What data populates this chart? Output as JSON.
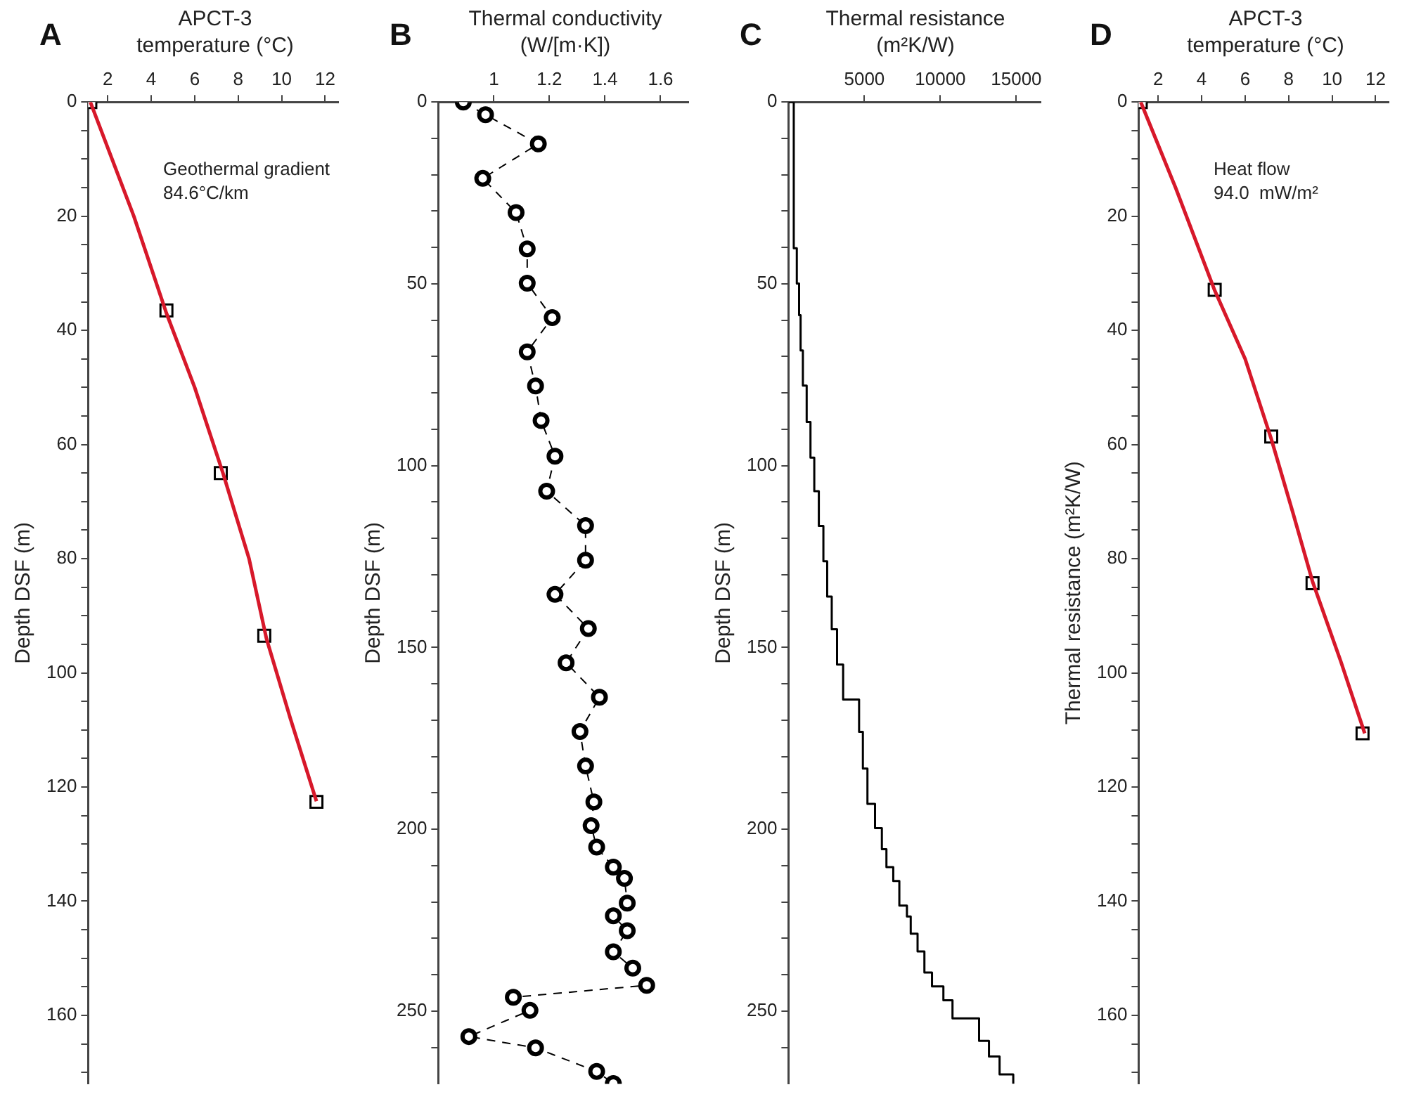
{
  "chart_data": [
    {
      "type": "scatter",
      "title": "A",
      "xlabel": "APCT-3\ntemperature (°C)",
      "ylabel": "Depth DSF (m)",
      "xlim": [
        1.1,
        12.6
      ],
      "xticks": [
        2,
        4,
        6,
        8,
        10,
        12
      ],
      "ylim": [
        172,
        0
      ],
      "yticks": [
        0,
        {
          "value": 5,
          "label": null
        },
        {
          "value": 10,
          "label": null
        },
        {
          "value": 15,
          "label": null
        },
        20,
        {
          "value": 25,
          "label": null
        },
        {
          "value": 30,
          "label": null
        },
        {
          "value": 35,
          "label": null
        },
        40,
        {
          "value": 45,
          "label": null
        },
        {
          "value": 50,
          "label": null
        },
        {
          "value": 55,
          "label": null
        },
        60,
        {
          "value": 65,
          "label": null
        },
        {
          "value": 70,
          "label": null
        },
        {
          "value": 75,
          "label": null
        },
        80,
        {
          "value": 85,
          "label": null
        },
        {
          "value": 90,
          "label": null
        },
        {
          "value": 95,
          "label": null
        },
        100,
        {
          "value": 105,
          "label": null
        },
        {
          "value": 110,
          "label": null
        },
        {
          "value": 115,
          "label": null
        },
        120,
        {
          "value": 125,
          "label": null
        },
        {
          "value": 130,
          "label": null
        },
        {
          "value": 135,
          "label": null
        },
        140,
        {
          "value": 145,
          "label": null
        },
        {
          "value": 150,
          "label": null
        },
        {
          "value": 155,
          "label": null
        },
        160,
        {
          "value": 165,
          "label": null
        },
        {
          "value": 170,
          "label": null
        }
      ],
      "annotations": [
        "Geothermal gradient\n84.6°C/km"
      ],
      "series": [
        {
          "type": "line",
          "color": "#d7182a",
          "marker": "none",
          "x": [
            1.2,
            3.2,
            4.7,
            6.0,
            7.3,
            8.5,
            9.3,
            10.4,
            11.6
          ],
          "values": [
            0,
            20,
            37,
            50,
            65,
            80,
            94,
            108,
            122.5
          ]
        },
        {
          "color": "#000000",
          "marker": "square",
          "x": [
            1.2,
            4.7,
            7.2,
            9.2,
            11.6
          ],
          "values": [
            0,
            36.5,
            65,
            93.5,
            122.6
          ]
        }
      ]
    },
    {
      "type": "line",
      "title": "B",
      "xlabel": "Thermal conductivity\n(W/[m·K])",
      "ylabel": "Depth DSF (m)",
      "xlim": [
        0.8,
        1.7
      ],
      "xticks": [
        1,
        1.2,
        1.4,
        1.6
      ],
      "ylim": [
        270,
        0
      ],
      "yticks": [
        0,
        {
          "value": 10,
          "label": null
        },
        {
          "value": 20,
          "label": null
        },
        {
          "value": 30,
          "label": null
        },
        {
          "value": 40,
          "label": null
        },
        50,
        {
          "value": 60,
          "label": null
        },
        {
          "value": 70,
          "label": null
        },
        {
          "value": 80,
          "label": null
        },
        {
          "value": 90,
          "label": null
        },
        100,
        {
          "value": 110,
          "label": null
        },
        {
          "value": 120,
          "label": null
        },
        {
          "value": 130,
          "label": null
        },
        {
          "value": 140,
          "label": null
        },
        150,
        {
          "value": 160,
          "label": null
        },
        {
          "value": 170,
          "label": null
        },
        {
          "value": 180,
          "label": null
        },
        {
          "value": 190,
          "label": null
        },
        200,
        {
          "value": 210,
          "label": null
        },
        {
          "value": 220,
          "label": null
        },
        {
          "value": 230,
          "label": null
        },
        {
          "value": 240,
          "label": null
        },
        250,
        {
          "value": 260,
          "label": null
        }
      ],
      "marker": "circle",
      "line_style": "dashed",
      "series": [
        {
          "color": "#000000",
          "x": [
            0.89,
            0.97,
            1.16,
            0.96,
            1.08,
            1.12,
            1.12,
            1.21,
            1.12,
            1.15,
            1.17,
            1.22,
            1.19,
            1.33,
            1.33,
            1.22,
            1.34,
            1.26,
            1.38,
            1.31,
            1.33,
            1.36,
            1.35,
            1.37,
            1.43,
            1.47,
            1.48,
            1.43,
            1.48,
            1.43,
            1.5,
            1.55,
            1.07,
            1.13,
            0.91,
            1.15,
            1.37,
            1.43
          ],
          "values": [
            0,
            3.5,
            11.5,
            21,
            30.4,
            40.4,
            49.8,
            59.3,
            68.7,
            78.1,
            87.6,
            97.4,
            107,
            116.5,
            126,
            135.4,
            144.8,
            154.2,
            163.7,
            173.1,
            182.6,
            192.5,
            199,
            204.9,
            210.4,
            213.5,
            220.3,
            223.8,
            227.9,
            233.7,
            238.2,
            242.9,
            246.2,
            249.8,
            257,
            260.1,
            266.6,
            269.9
          ]
        }
      ]
    },
    {
      "type": "step",
      "title": "C",
      "xlabel": "Thermal resistance\n(m²K/W)",
      "ylabel": "Depth DSF (m)",
      "xlim": [
        0,
        16600
      ],
      "xticks": [
        5000,
        10000,
        15000
      ],
      "ylim": [
        270,
        0
      ],
      "yticks": [
        0,
        {
          "value": 10,
          "label": null
        },
        {
          "value": 20,
          "label": null
        },
        {
          "value": 30,
          "label": null
        },
        {
          "value": 40,
          "label": null
        },
        50,
        {
          "value": 60,
          "label": null
        },
        {
          "value": 70,
          "label": null
        },
        {
          "value": 80,
          "label": null
        },
        {
          "value": 90,
          "label": null
        },
        100,
        {
          "value": 110,
          "label": null
        },
        {
          "value": 120,
          "label": null
        },
        {
          "value": 130,
          "label": null
        },
        {
          "value": 140,
          "label": null
        },
        150,
        {
          "value": 160,
          "label": null
        },
        {
          "value": 170,
          "label": null
        },
        {
          "value": 180,
          "label": null
        },
        {
          "value": 190,
          "label": null
        },
        200,
        {
          "value": 210,
          "label": null
        },
        {
          "value": 220,
          "label": null
        },
        {
          "value": 230,
          "label": null
        },
        {
          "value": 240,
          "label": null
        },
        250,
        {
          "value": 260,
          "label": null
        }
      ],
      "series": [
        {
          "color": "#000000",
          "x": [
            0,
            350,
            550,
            700,
            800,
            950,
            1200,
            1450,
            1700,
            2000,
            2300,
            2550,
            2850,
            3200,
            3600,
            4650,
            4900,
            5200,
            5700,
            6150,
            6450,
            6900,
            7300,
            7800,
            8050,
            8500,
            8950,
            9450,
            10200,
            10800,
            12550,
            13200,
            13900,
            14800
          ],
          "values": [
            0,
            40.2,
            49.9,
            58.6,
            68.3,
            78,
            88,
            97.8,
            107,
            116.6,
            126.3,
            136,
            145,
            154.7,
            164.3,
            173.2,
            183.3,
            193,
            199.7,
            205.5,
            210.4,
            214.2,
            221,
            224,
            228.7,
            233.6,
            239.4,
            243.2,
            247,
            252,
            258.2,
            262.5,
            267.4,
            270
          ]
        }
      ]
    },
    {
      "type": "scatter",
      "title": "D",
      "xlabel": "APCT-3\ntemperature (°C)",
      "ylabel": "Thermal resistance (m²K/W)",
      "xlim": [
        1.1,
        12.6
      ],
      "xticks": [
        2,
        4,
        6,
        8,
        10,
        12
      ],
      "ylim": [
        172,
        0
      ],
      "yticks": [
        0,
        {
          "value": 5,
          "label": null
        },
        {
          "value": 10,
          "label": null
        },
        {
          "value": 15,
          "label": null
        },
        20,
        {
          "value": 25,
          "label": null
        },
        {
          "value": 30,
          "label": null
        },
        {
          "value": 35,
          "label": null
        },
        40,
        {
          "value": 45,
          "label": null
        },
        {
          "value": 50,
          "label": null
        },
        {
          "value": 55,
          "label": null
        },
        60,
        {
          "value": 65,
          "label": null
        },
        {
          "value": 70,
          "label": null
        },
        {
          "value": 75,
          "label": null
        },
        80,
        {
          "value": 85,
          "label": null
        },
        {
          "value": 90,
          "label": null
        },
        {
          "value": 95,
          "label": null
        },
        100,
        {
          "value": 105,
          "label": null
        },
        {
          "value": 110,
          "label": null
        },
        {
          "value": 115,
          "label": null
        },
        120,
        {
          "value": 125,
          "label": null
        },
        {
          "value": 130,
          "label": null
        },
        {
          "value": 135,
          "label": null
        },
        140,
        {
          "value": 145,
          "label": null
        },
        {
          "value": 150,
          "label": null
        },
        {
          "value": 155,
          "label": null
        },
        160,
        {
          "value": 165,
          "label": null
        },
        {
          "value": 170,
          "label": null
        }
      ],
      "annotations": [
        "Heat flow\n94.0  mW/m²"
      ],
      "series": [
        {
          "type": "line",
          "color": "#d7182a",
          "marker": "none",
          "x": [
            1.2,
            2.8,
            4.6,
            6.0,
            7.2,
            8.2,
            9.1,
            10.4,
            11.5
          ],
          "values": [
            0,
            15,
            33,
            45,
            59,
            72,
            84,
            98,
            110.6
          ]
        },
        {
          "color": "#000000",
          "marker": "square",
          "x": [
            1.2,
            4.6,
            7.2,
            9.1,
            11.4
          ],
          "values": [
            0,
            32.9,
            58.6,
            84.3,
            110.6
          ]
        }
      ]
    }
  ]
}
